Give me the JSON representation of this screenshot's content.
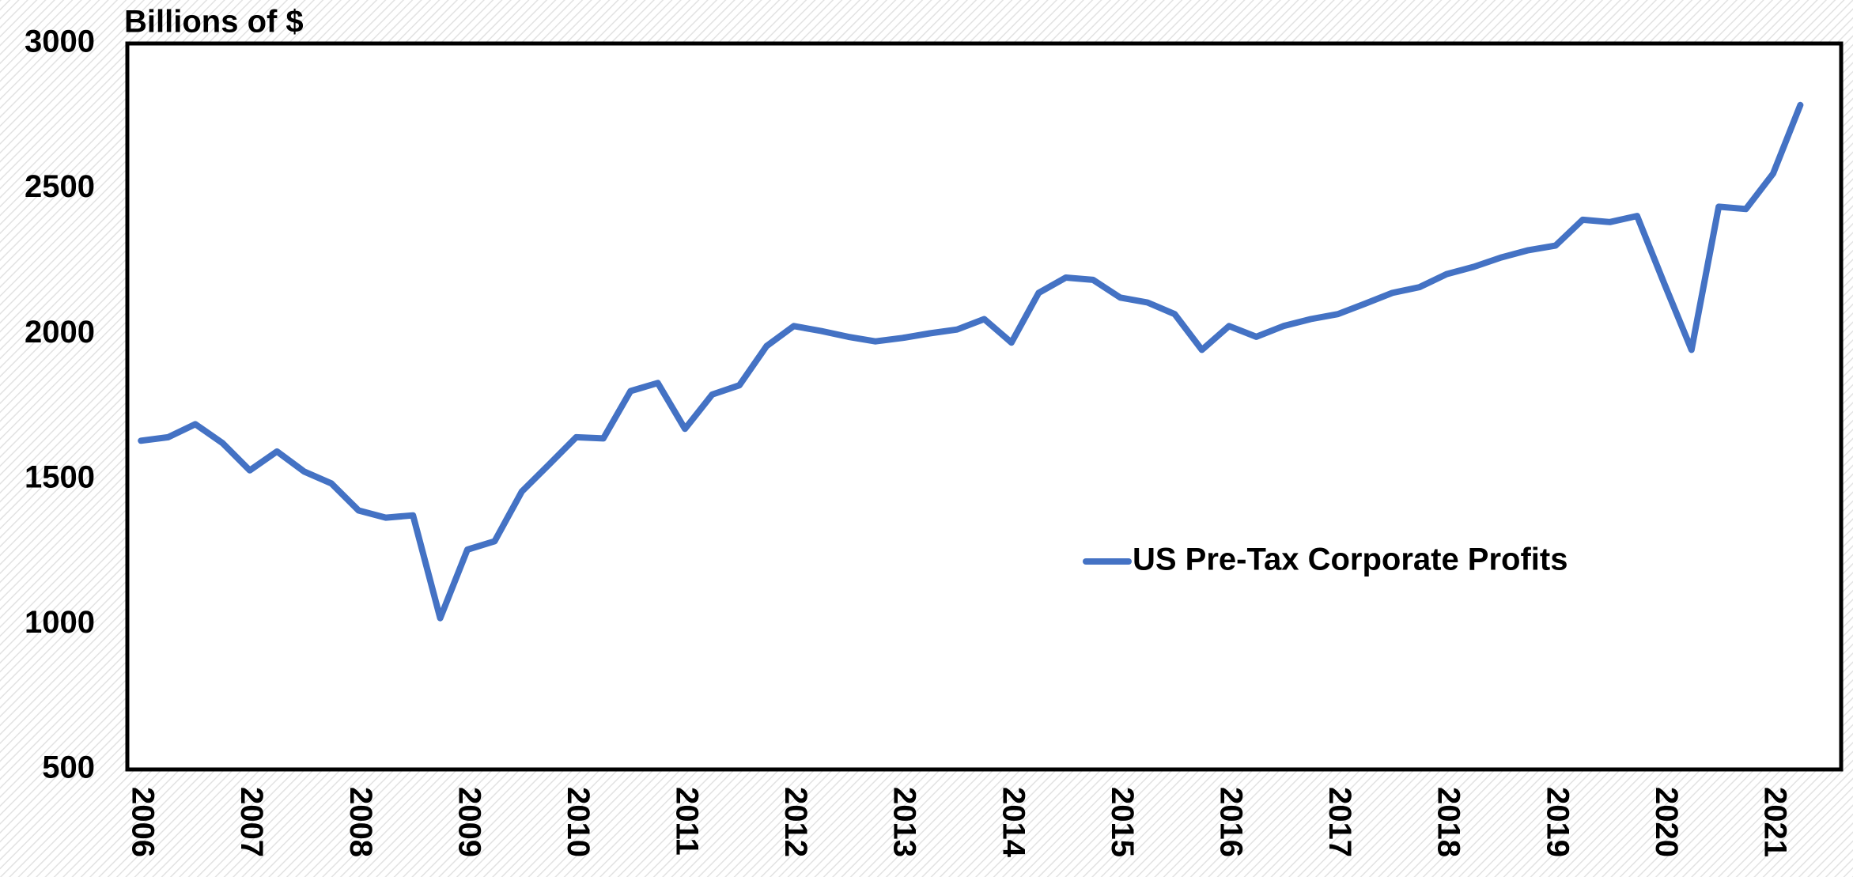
{
  "chart_data": {
    "type": "line",
    "title": "Billions of $",
    "categories": [
      "2006",
      null,
      null,
      null,
      "2007",
      null,
      null,
      null,
      "2008",
      null,
      null,
      null,
      "2009",
      null,
      null,
      null,
      "2010",
      null,
      null,
      null,
      "2011",
      null,
      null,
      null,
      "2012",
      null,
      null,
      null,
      "2013",
      null,
      null,
      null,
      "2014",
      null,
      null,
      null,
      "2015",
      null,
      null,
      null,
      "2016",
      null,
      null,
      null,
      "2017",
      null,
      null,
      null,
      "2018",
      null,
      null,
      null,
      "2019",
      null,
      null,
      null,
      "2020",
      null,
      null,
      null,
      "2021",
      null
    ],
    "series": [
      {
        "name": "US Pre-Tax Corporate Profits",
        "color": "#4472c4",
        "values": [
          1632,
          1644,
          1689,
          1624,
          1530,
          1595,
          1526,
          1485,
          1392,
          1367,
          1375,
          1021,
          1257,
          1286,
          1457,
          1550,
          1644,
          1640,
          1803,
          1831,
          1673,
          1791,
          1823,
          1958,
          2027,
          2010,
          1990,
          1974,
          1986,
          2002,
          2015,
          2051,
          1970,
          2141,
          2194,
          2186,
          2125,
          2108,
          2068,
          1945,
          2027,
          1990,
          2027,
          2051,
          2068,
          2104,
          2141,
          2161,
          2206,
          2231,
          2263,
          2288,
          2304,
          2393,
          2385,
          2406,
          2173,
          1945,
          2438,
          2430,
          2552,
          2788
        ]
      }
    ],
    "ylim": [
      500,
      3000
    ],
    "yticks": [
      500,
      1000,
      1500,
      2000,
      2500,
      3000
    ],
    "grid": false
  }
}
